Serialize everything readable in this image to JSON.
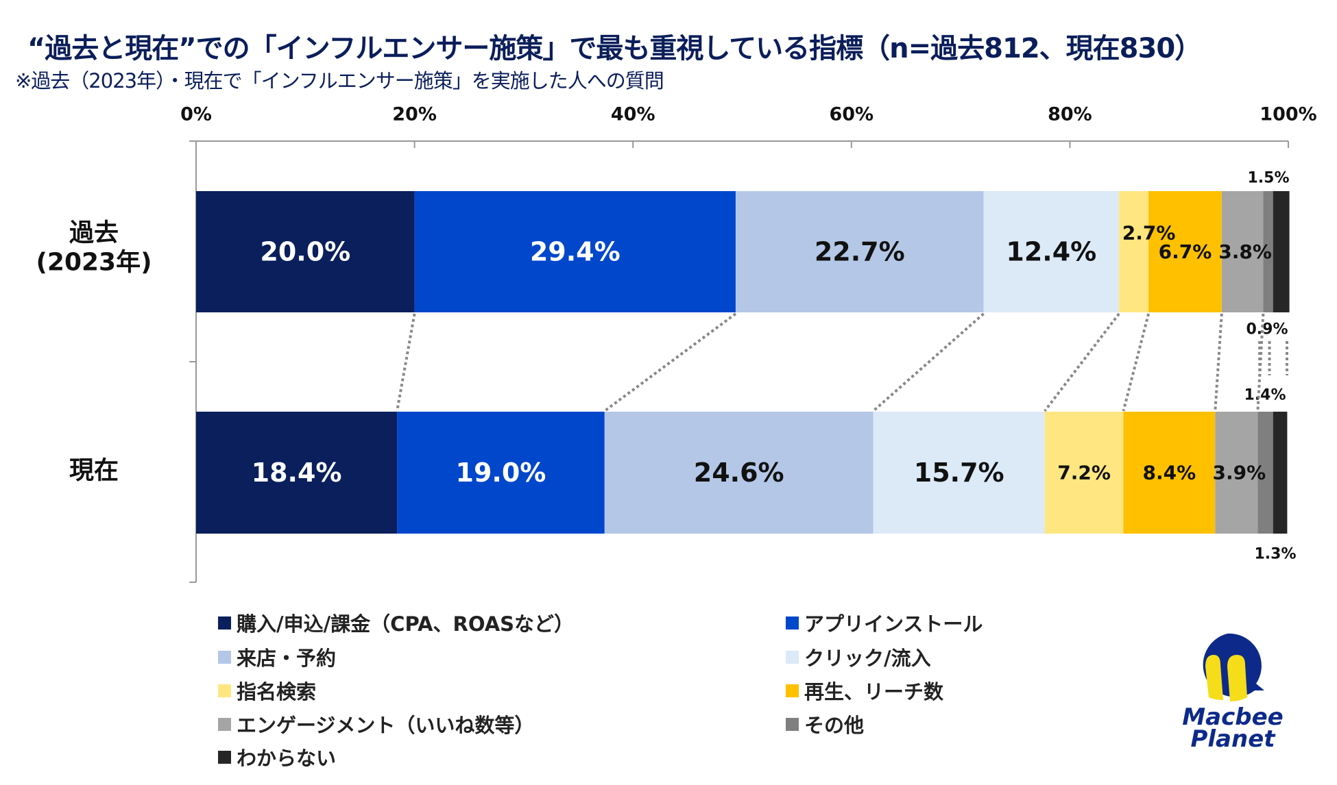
{
  "title": "“過去と現在”での「インフルエンサー施策」で最も重視している指標（n=過去812、現在830）",
  "subtitle": "※過去（2023年）・現在で「インフルエンサー施策」を実施した人への質問",
  "logo": {
    "line1": "Macbee",
    "line2": "Planet"
  },
  "chart_data": {
    "type": "bar",
    "orientation": "horizontal",
    "stacked": "percent",
    "xlim": [
      0,
      100
    ],
    "x_ticks": [
      "0%",
      "20%",
      "40%",
      "60%",
      "80%",
      "100%"
    ],
    "categories": [
      {
        "label_line1": "過去",
        "label_line2": "(2023年)"
      },
      {
        "label_line1": "現在",
        "label_line2": ""
      }
    ],
    "series": [
      {
        "name": "購入/申込/課金（CPA、ROASなど）",
        "color": "#0a1f5c",
        "values": [
          20.0,
          18.4
        ],
        "labels": [
          "20.0%",
          "18.4%"
        ]
      },
      {
        "name": "アプリインストール",
        "color": "#0047cc",
        "values": [
          29.4,
          19.0
        ],
        "labels": [
          "29.4%",
          "19.0%"
        ]
      },
      {
        "name": "来店・予約",
        "color": "#b4c7e7",
        "values": [
          22.7,
          24.6
        ],
        "labels": [
          "22.7%",
          "24.6%"
        ]
      },
      {
        "name": "クリック/流入",
        "color": "#dce9f7",
        "values": [
          12.4,
          15.7
        ],
        "labels": [
          "12.4%",
          "15.7%"
        ]
      },
      {
        "name": "指名検索",
        "color": "#ffe680",
        "values": [
          2.7,
          7.2
        ],
        "labels": [
          "2.7%",
          "7.2%"
        ]
      },
      {
        "name": "再生、リーチ数",
        "color": "#ffc000",
        "values": [
          6.7,
          8.4
        ],
        "labels": [
          "6.7%",
          "8.4%"
        ]
      },
      {
        "name": "エンゲージメント（いいね数等）",
        "color": "#a5a5a5",
        "values": [
          3.8,
          3.9
        ],
        "labels": [
          "3.8%",
          "3.9%"
        ]
      },
      {
        "name": "その他",
        "color": "#7f7f7f",
        "values": [
          0.9,
          1.4
        ],
        "labels": [
          "0.9%",
          "1.4%"
        ]
      },
      {
        "name": "わからない",
        "color": "#262626",
        "values": [
          1.5,
          1.3
        ],
        "labels": [
          "1.5%",
          "1.3%"
        ]
      }
    ],
    "legend_position": "bottom",
    "connector_lines": "dotted"
  }
}
